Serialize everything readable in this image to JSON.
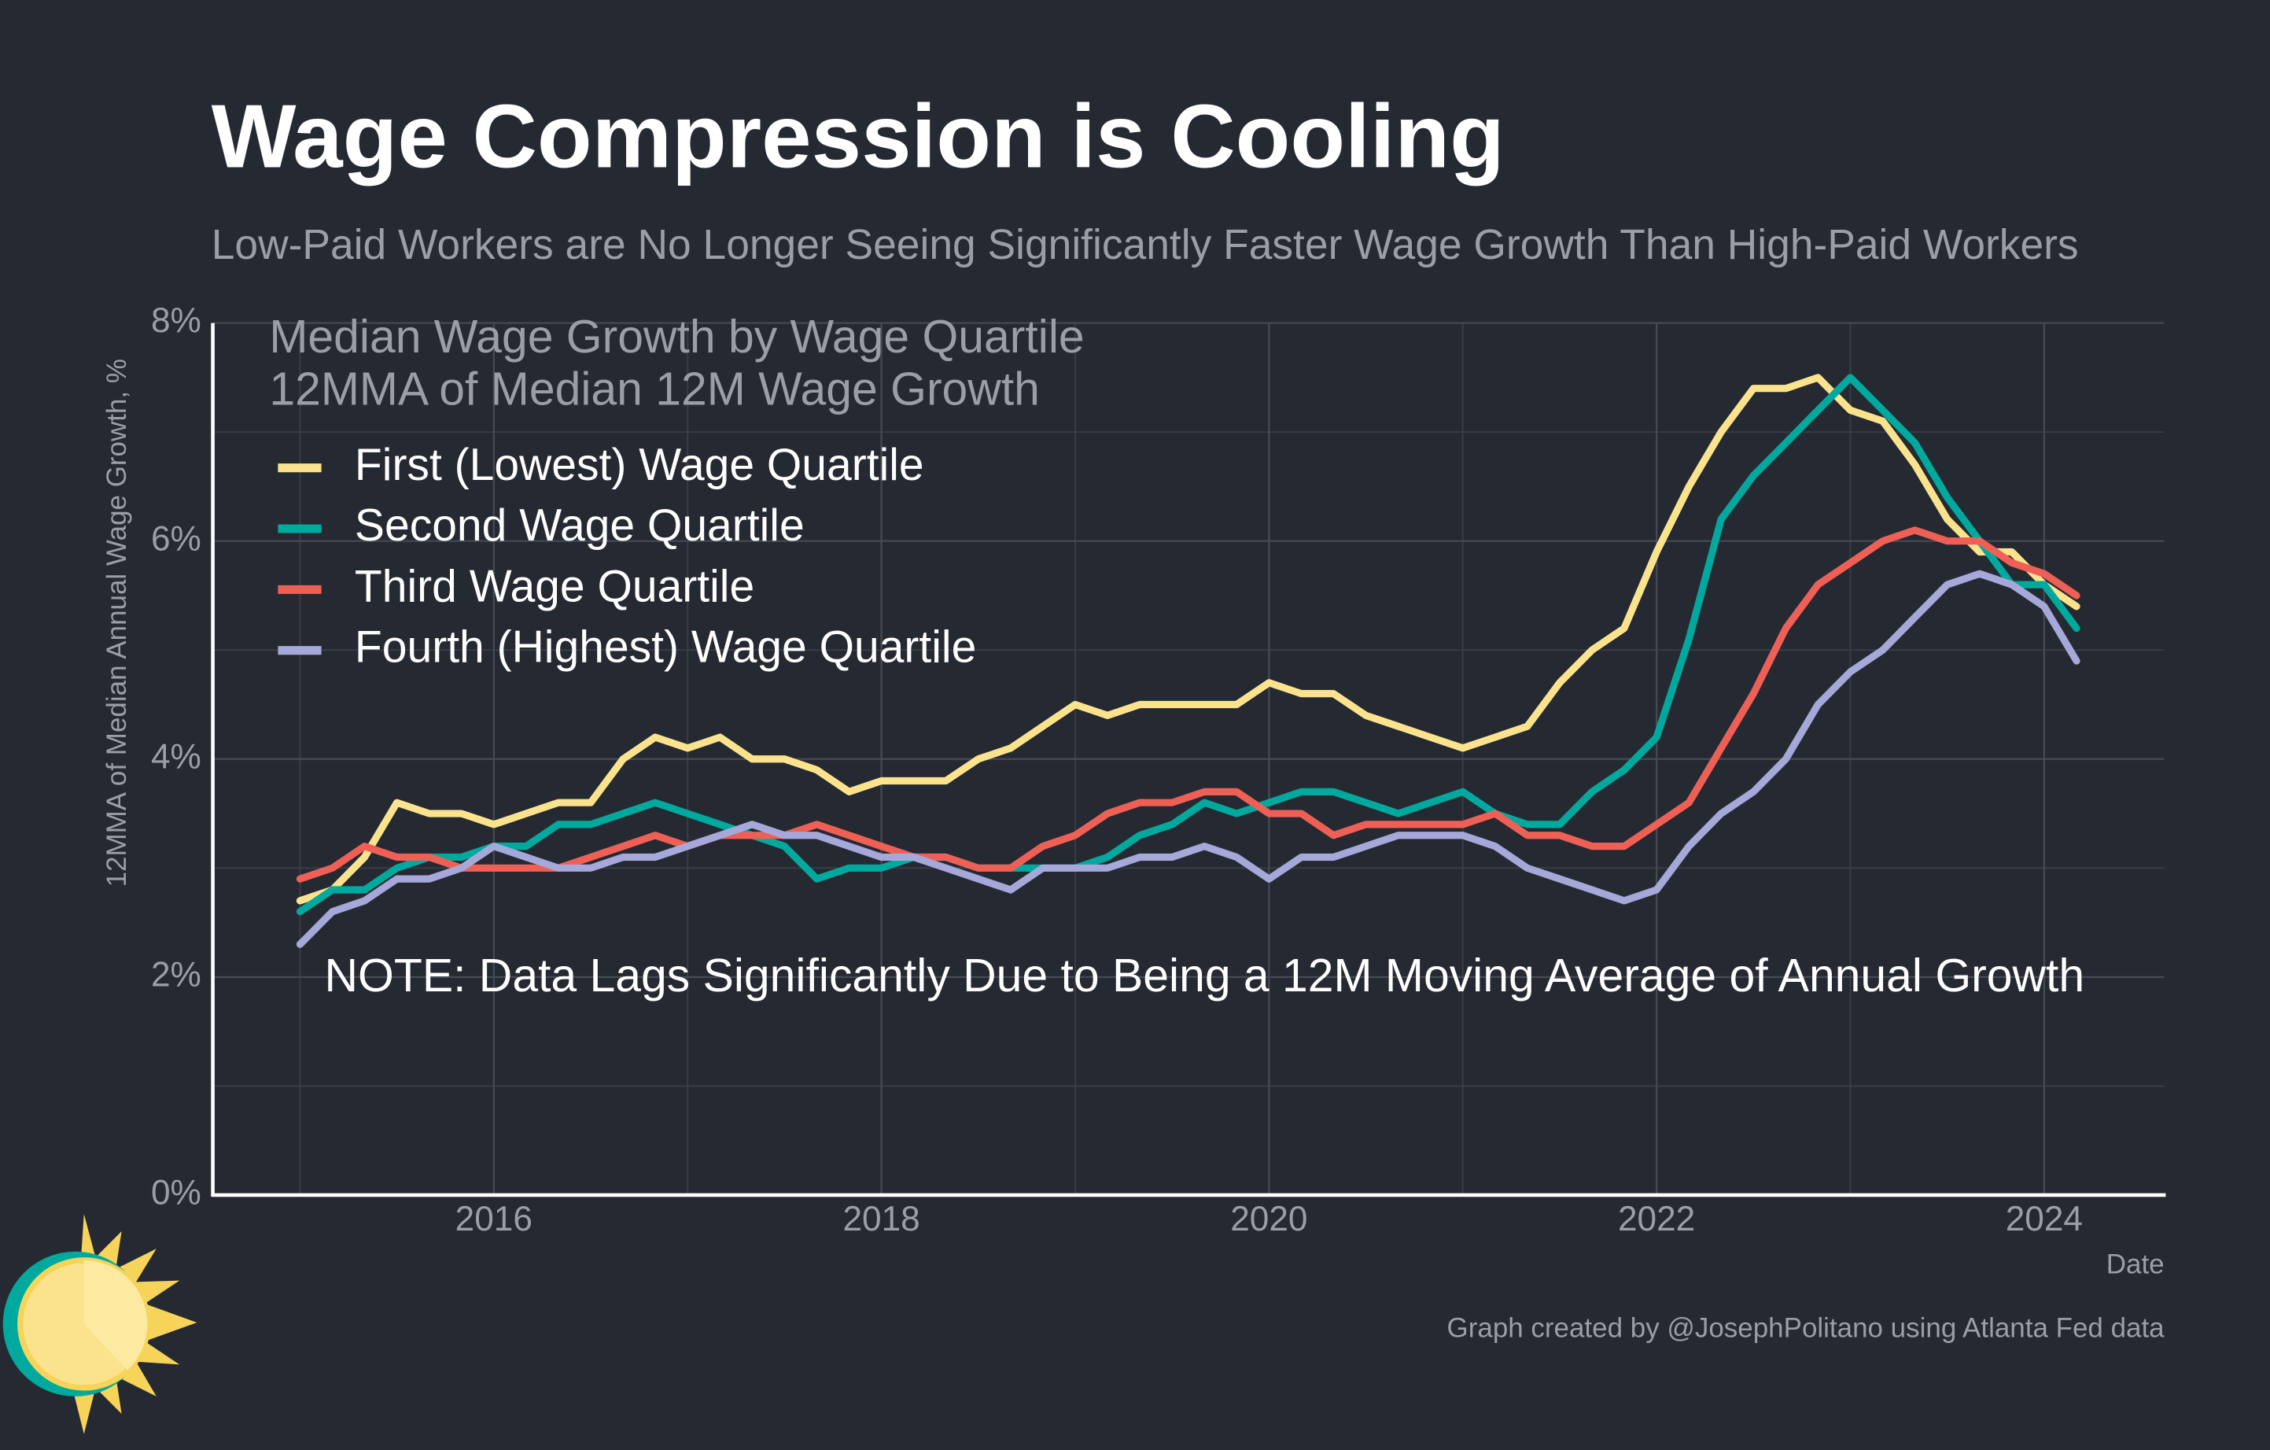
{
  "chart_data": {
    "type": "line",
    "title": "Wage Compression is Cooling",
    "subtitle": "Low-Paid Workers are No Longer Seeing Significantly Faster Wage Growth Than High-Paid Workers",
    "annotation_title": [
      "Median Wage Growth by Wage Quartile",
      "12MMA of Median 12M Wage Growth"
    ],
    "note": "NOTE: Data Lags Significantly Due to Being a 12M Moving Average of Annual Growth",
    "ylabel": "12MMA of Median Annual Wage Growth, %",
    "xlabel": "Date",
    "caption": "Graph created by @JosephPolitano using Atlanta Fed data",
    "x": [
      2015,
      2015.167,
      2015.333,
      2015.5,
      2015.667,
      2015.833,
      2016,
      2016.167,
      2016.333,
      2016.5,
      2016.667,
      2016.833,
      2017,
      2017.167,
      2017.333,
      2017.5,
      2017.667,
      2017.833,
      2018,
      2018.167,
      2018.333,
      2018.5,
      2018.667,
      2018.833,
      2019,
      2019.167,
      2019.333,
      2019.5,
      2019.667,
      2019.833,
      2020,
      2020.167,
      2020.333,
      2020.5,
      2020.667,
      2020.833,
      2021,
      2021.167,
      2021.333,
      2021.5,
      2021.667,
      2021.833,
      2022,
      2022.167,
      2022.333,
      2022.5,
      2022.667,
      2022.833,
      2023,
      2023.167,
      2023.333,
      2023.5,
      2023.667,
      2023.833,
      2024,
      2024.167
    ],
    "series": [
      {
        "name": "First (Lowest) Wage Quartile",
        "color": "#fbe38e",
        "values": [
          2.7,
          2.8,
          3.1,
          3.6,
          3.5,
          3.5,
          3.4,
          3.5,
          3.6,
          3.6,
          4.0,
          4.2,
          4.1,
          4.2,
          4.0,
          4.0,
          3.9,
          3.7,
          3.8,
          3.8,
          3.8,
          4.0,
          4.1,
          4.3,
          4.5,
          4.4,
          4.5,
          4.5,
          4.5,
          4.5,
          4.7,
          4.6,
          4.6,
          4.4,
          4.3,
          4.2,
          4.1,
          4.2,
          4.3,
          4.7,
          5.0,
          5.2,
          5.9,
          6.5,
          7.0,
          7.4,
          7.4,
          7.5,
          7.2,
          7.1,
          6.7,
          6.2,
          5.9,
          5.9,
          5.6,
          5.4
        ]
      },
      {
        "name": "Second Wage Quartile",
        "color": "#00a99d",
        "values": [
          2.6,
          2.8,
          2.8,
          3.0,
          3.1,
          3.1,
          3.2,
          3.2,
          3.4,
          3.4,
          3.5,
          3.6,
          3.5,
          3.4,
          3.3,
          3.2,
          2.9,
          3.0,
          3.0,
          3.1,
          3.1,
          3.0,
          3.0,
          3.0,
          3.0,
          3.1,
          3.3,
          3.4,
          3.6,
          3.5,
          3.6,
          3.7,
          3.7,
          3.6,
          3.5,
          3.6,
          3.7,
          3.5,
          3.4,
          3.4,
          3.7,
          3.9,
          4.2,
          5.1,
          6.2,
          6.6,
          6.9,
          7.2,
          7.5,
          7.2,
          6.9,
          6.4,
          6.0,
          5.6,
          5.6,
          5.2
        ]
      },
      {
        "name": "Third Wage Quartile",
        "color": "#ee6055",
        "values": [
          2.9,
          3.0,
          3.2,
          3.1,
          3.1,
          3.0,
          3.0,
          3.0,
          3.0,
          3.1,
          3.2,
          3.3,
          3.2,
          3.3,
          3.3,
          3.3,
          3.4,
          3.3,
          3.2,
          3.1,
          3.1,
          3.0,
          3.0,
          3.2,
          3.3,
          3.5,
          3.6,
          3.6,
          3.7,
          3.7,
          3.5,
          3.5,
          3.3,
          3.4,
          3.4,
          3.4,
          3.4,
          3.5,
          3.3,
          3.3,
          3.2,
          3.2,
          3.4,
          3.6,
          4.1,
          4.6,
          5.2,
          5.6,
          5.8,
          6.0,
          6.1,
          6.0,
          6.0,
          5.8,
          5.7,
          5.5
        ]
      },
      {
        "name": "Fourth (Highest) Wage Quartile",
        "color": "#a5a8d8",
        "values": [
          2.3,
          2.6,
          2.7,
          2.9,
          2.9,
          3.0,
          3.2,
          3.1,
          3.0,
          3.0,
          3.1,
          3.1,
          3.2,
          3.3,
          3.4,
          3.3,
          3.3,
          3.2,
          3.1,
          3.1,
          3.0,
          2.9,
          2.8,
          3.0,
          3.0,
          3.0,
          3.1,
          3.1,
          3.2,
          3.1,
          2.9,
          3.1,
          3.1,
          3.2,
          3.3,
          3.3,
          3.3,
          3.2,
          3.0,
          2.9,
          2.8,
          2.7,
          2.8,
          3.2,
          3.5,
          3.7,
          4.0,
          4.5,
          4.8,
          5.0,
          5.3,
          5.6,
          5.7,
          5.6,
          5.4,
          4.9
        ]
      }
    ],
    "xlim": [
      2014.55,
      2024.62
    ],
    "xticks": [
      2016,
      2018,
      2020,
      2022,
      2024
    ],
    "ylim": [
      0,
      8
    ],
    "yticks": [
      {
        "value": 0,
        "label": "0%"
      },
      {
        "value": 2,
        "label": "2%"
      },
      {
        "value": 4,
        "label": "4%"
      },
      {
        "value": 6,
        "label": "6%"
      },
      {
        "value": 8,
        "label": "8%"
      }
    ],
    "grid": true,
    "legend": "upper left"
  }
}
